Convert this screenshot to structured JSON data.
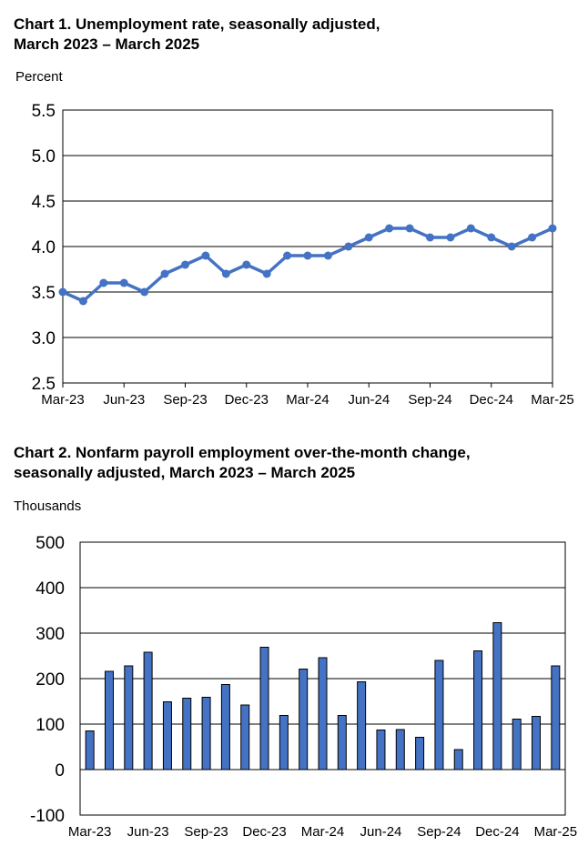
{
  "charts": [
    {
      "title_line1": "Chart 1. Unemployment rate, seasonally adjusted,",
      "title_line2": "March 2023 – March 2025",
      "unit_label": "Percent"
    },
    {
      "title_line1": "Chart 2. Nonfarm payroll employment over-the-month change,",
      "title_line2": "seasonally adjusted, March 2023 – March 2025",
      "unit_label": "Thousands"
    }
  ],
  "chart_data": [
    {
      "type": "line",
      "title": "Chart 1. Unemployment rate, seasonally adjusted, March 2023 – March 2025",
      "ylabel": "Percent",
      "xlabel": "",
      "x": [
        "Mar-23",
        "Apr-23",
        "May-23",
        "Jun-23",
        "Jul-23",
        "Aug-23",
        "Sep-23",
        "Oct-23",
        "Nov-23",
        "Dec-23",
        "Jan-24",
        "Feb-24",
        "Mar-24",
        "Apr-24",
        "May-24",
        "Jun-24",
        "Jul-24",
        "Aug-24",
        "Sep-24",
        "Oct-24",
        "Nov-24",
        "Dec-24",
        "Jan-25",
        "Feb-25",
        "Mar-25"
      ],
      "x_tick_labels": [
        "Mar-23",
        "Jun-23",
        "Sep-23",
        "Dec-23",
        "Mar-24",
        "Jun-24",
        "Sep-24",
        "Dec-24",
        "Mar-25"
      ],
      "y_tick_labels": [
        "2.5",
        "3.0",
        "3.5",
        "4.0",
        "4.5",
        "5.0",
        "5.5"
      ],
      "series": [
        {
          "values": [
            3.5,
            3.4,
            3.6,
            3.6,
            3.5,
            3.7,
            3.8,
            3.9,
            3.7,
            3.8,
            3.7,
            3.9,
            3.9,
            3.9,
            4.0,
            4.1,
            4.2,
            4.2,
            4.1,
            4.1,
            4.2,
            4.1,
            4.0,
            4.1,
            4.2
          ]
        }
      ],
      "ylim": [
        2.5,
        5.5
      ],
      "grid": true,
      "color": "#4472c4"
    },
    {
      "type": "bar",
      "title": "Chart 2. Nonfarm payroll employment over-the-month change, seasonally adjusted, March 2023 – March 2025",
      "ylabel": "Thousands",
      "xlabel": "",
      "categories": [
        "Mar-23",
        "Apr-23",
        "May-23",
        "Jun-23",
        "Jul-23",
        "Aug-23",
        "Sep-23",
        "Oct-23",
        "Nov-23",
        "Dec-23",
        "Jan-24",
        "Feb-24",
        "Mar-24",
        "Apr-24",
        "May-24",
        "Jun-24",
        "Jul-24",
        "Aug-24",
        "Sep-24",
        "Oct-24",
        "Nov-24",
        "Dec-24",
        "Jan-25",
        "Feb-25",
        "Mar-25"
      ],
      "x_tick_labels": [
        "Mar-23",
        "Jun-23",
        "Sep-23",
        "Dec-23",
        "Mar-24",
        "Jun-24",
        "Sep-24",
        "Dec-24",
        "Mar-25"
      ],
      "y_tick_labels": [
        "-100",
        "0",
        "100",
        "200",
        "300",
        "400",
        "500"
      ],
      "values": [
        85,
        216,
        228,
        258,
        149,
        157,
        159,
        187,
        142,
        269,
        119,
        221,
        246,
        119,
        193,
        87,
        88,
        71,
        240,
        44,
        261,
        323,
        111,
        117,
        228
      ],
      "ylim": [
        -100,
        500
      ],
      "grid": true,
      "color": "#4472c4"
    }
  ]
}
